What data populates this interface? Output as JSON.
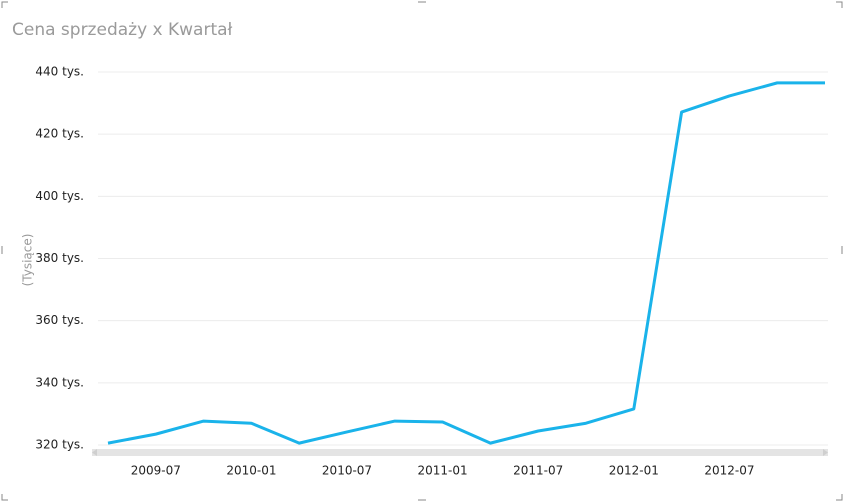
{
  "chart_data": {
    "type": "line",
    "title": "Cena sprzedaży x Kwartał",
    "y_label": "(Tysiące)",
    "x": [
      "2009-04",
      "2009-07",
      "2009-10",
      "2010-01",
      "2010-04",
      "2010-07",
      "2010-10",
      "2011-01",
      "2011-04",
      "2011-07",
      "2011-10",
      "2012-01",
      "2012-04",
      "2012-07",
      "2012-10",
      "2013-01"
    ],
    "series": [
      {
        "name": "Cena sprzedaży",
        "color": "#1ab3ea",
        "values": [
          320.6,
          323.5,
          327.7,
          327.0,
          320.6,
          324.2,
          327.7,
          327.4,
          320.6,
          324.5,
          327.0,
          331.6,
          427.1,
          432.3,
          436.5,
          436.5
        ]
      }
    ],
    "xlim": [
      "2009-04",
      "2013-01"
    ],
    "xticks": [
      "2009-07",
      "2010-01",
      "2010-07",
      "2011-01",
      "2011-07",
      "2012-01",
      "2012-07"
    ],
    "ylim": [
      320,
      440
    ],
    "yticks": [
      {
        "value": 320,
        "label": "320 tys."
      },
      {
        "value": 340,
        "label": "340 tys."
      },
      {
        "value": 360,
        "label": "360 tys."
      },
      {
        "value": 380,
        "label": "380 tys."
      },
      {
        "value": 400,
        "label": "400 tys."
      },
      {
        "value": 420,
        "label": "420 tys."
      },
      {
        "value": 440,
        "label": "440 tys."
      }
    ],
    "grid": true
  }
}
